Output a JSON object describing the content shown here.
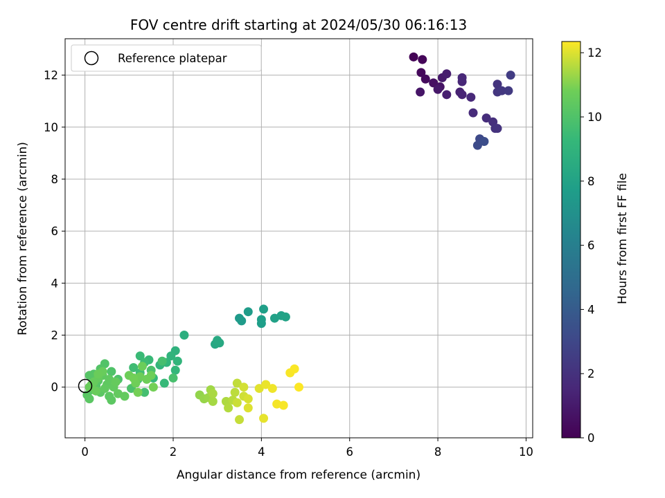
{
  "chart_data": {
    "type": "scatter",
    "title": "FOV centre drift starting at 2024/05/30 06:16:13",
    "xlabel": "Angular distance from reference (arcmin)",
    "ylabel": "Rotation from reference (arcmin)",
    "xlim": [
      -0.45,
      10.15
    ],
    "ylim": [
      -1.95,
      13.4
    ],
    "xticks": [
      0,
      2,
      4,
      6,
      8,
      10
    ],
    "yticks": [
      0,
      2,
      4,
      6,
      8,
      10,
      12
    ],
    "grid": true,
    "legend": {
      "placement": "top-left",
      "entries": [
        "Reference platepar"
      ]
    },
    "reference_point": {
      "x": 0,
      "y": 0,
      "label": "Reference platepar"
    },
    "colorbar": {
      "label": "Hours from first FF file",
      "range": [
        0,
        12.35
      ],
      "ticks": [
        0,
        2,
        4,
        6,
        8,
        10,
        12
      ],
      "colormap": "viridis"
    },
    "points": [
      [
        7.45,
        12.7,
        0.1
      ],
      [
        7.65,
        12.6,
        0.2
      ],
      [
        7.62,
        12.1,
        0.3
      ],
      [
        7.72,
        11.85,
        0.4
      ],
      [
        7.9,
        11.7,
        0.6
      ],
      [
        8.05,
        11.55,
        0.7
      ],
      [
        7.6,
        11.35,
        0.8
      ],
      [
        8.0,
        11.45,
        0.9
      ],
      [
        8.1,
        11.9,
        1.0
      ],
      [
        8.2,
        12.05,
        1.1
      ],
      [
        8.2,
        11.25,
        1.2
      ],
      [
        8.5,
        11.35,
        1.3
      ],
      [
        8.55,
        11.25,
        1.4
      ],
      [
        8.55,
        11.75,
        1.5
      ],
      [
        8.55,
        11.9,
        1.55
      ],
      [
        8.75,
        11.15,
        1.6
      ],
      [
        8.8,
        10.55,
        1.7
      ],
      [
        9.1,
        10.35,
        1.8
      ],
      [
        9.25,
        10.2,
        1.9
      ],
      [
        9.3,
        9.95,
        2.0
      ],
      [
        9.35,
        9.95,
        2.05
      ],
      [
        9.35,
        11.65,
        2.1
      ],
      [
        9.35,
        11.35,
        2.2
      ],
      [
        9.45,
        11.4,
        2.3
      ],
      [
        9.6,
        11.4,
        2.4
      ],
      [
        9.65,
        12.0,
        2.5
      ],
      [
        8.95,
        9.55,
        3.1
      ],
      [
        8.9,
        9.3,
        3.2
      ],
      [
        9.05,
        9.45,
        3.3
      ],
      [
        3.5,
        2.65,
        7.5
      ],
      [
        3.55,
        2.55,
        7.55
      ],
      [
        3.7,
        2.9,
        7.6
      ],
      [
        4.0,
        2.45,
        7.7
      ],
      [
        4.0,
        2.6,
        7.75
      ],
      [
        4.05,
        3.0,
        7.8
      ],
      [
        4.3,
        2.65,
        7.9
      ],
      [
        4.45,
        2.75,
        7.95
      ],
      [
        4.55,
        2.7,
        8.0
      ],
      [
        2.95,
        1.65,
        8.3
      ],
      [
        3.05,
        1.7,
        8.35
      ],
      [
        3.0,
        1.8,
        8.4
      ],
      [
        2.25,
        2.0,
        8.7
      ],
      [
        2.05,
        1.4,
        8.9
      ],
      [
        1.95,
        1.2,
        9.0
      ],
      [
        2.1,
        1.0,
        9.05
      ],
      [
        1.7,
        0.85,
        9.1
      ],
      [
        1.85,
        0.95,
        9.15
      ],
      [
        2.05,
        0.65,
        9.2
      ],
      [
        1.55,
        0.35,
        9.25
      ],
      [
        1.8,
        0.15,
        9.3
      ],
      [
        1.45,
        1.05,
        9.35
      ],
      [
        1.25,
        1.2,
        9.4
      ],
      [
        1.35,
        0.95,
        9.5
      ],
      [
        1.1,
        0.75,
        9.55
      ],
      [
        1.25,
        0.55,
        9.6
      ],
      [
        1.2,
        0.3,
        9.65
      ],
      [
        1.35,
        -0.2,
        9.7
      ],
      [
        1.75,
        1.0,
        9.75
      ],
      [
        2.0,
        0.35,
        9.8
      ],
      [
        1.5,
        0.65,
        9.85
      ],
      [
        1.05,
        -0.05,
        9.9
      ],
      [
        0.75,
        0.3,
        9.95
      ],
      [
        0.6,
        0.6,
        10.0
      ],
      [
        0.45,
        0.9,
        10.05
      ],
      [
        0.35,
        0.7,
        10.1
      ],
      [
        0.2,
        0.5,
        10.12
      ],
      [
        0.1,
        0.45,
        10.15
      ],
      [
        0.3,
        0.25,
        10.18
      ],
      [
        0.25,
        0.05,
        10.2
      ],
      [
        0.15,
        -0.1,
        10.22
      ],
      [
        0.05,
        -0.3,
        10.25
      ],
      [
        0.1,
        -0.45,
        10.28
      ],
      [
        0.35,
        -0.2,
        10.3
      ],
      [
        0.55,
        -0.35,
        10.32
      ],
      [
        0.6,
        -0.5,
        10.35
      ],
      [
        0.4,
        0.45,
        10.38
      ],
      [
        0.5,
        0.1,
        10.4
      ],
      [
        0.55,
        0.3,
        10.42
      ],
      [
        0.45,
        -0.05,
        10.45
      ],
      [
        0.65,
        0.0,
        10.48
      ],
      [
        0.75,
        -0.25,
        10.5
      ],
      [
        0.9,
        -0.35,
        10.52
      ],
      [
        0.7,
        0.2,
        10.55
      ],
      [
        0.3,
        0.35,
        10.57
      ],
      [
        0.2,
        0.2,
        10.6
      ],
      [
        0.15,
        0.1,
        10.62
      ],
      [
        0.4,
        0.6,
        10.64
      ],
      [
        0.25,
        -0.15,
        10.66
      ],
      [
        0.1,
        0.0,
        10.68
      ],
      [
        0.3,
        0.5,
        10.7
      ],
      [
        1.3,
        0.8,
        10.72
      ],
      [
        1.0,
        0.45,
        10.74
      ],
      [
        1.25,
        0.4,
        10.76
      ],
      [
        1.5,
        0.45,
        10.78
      ],
      [
        1.4,
        0.3,
        10.8
      ],
      [
        1.15,
        0.15,
        10.82
      ],
      [
        1.1,
        0.35,
        10.84
      ],
      [
        1.55,
        0.0,
        10.86
      ],
      [
        1.2,
        -0.2,
        10.88
      ],
      [
        2.6,
        -0.3,
        11.2
      ],
      [
        2.7,
        -0.45,
        11.25
      ],
      [
        2.8,
        -0.4,
        11.3
      ],
      [
        2.85,
        -0.1,
        11.35
      ],
      [
        2.9,
        -0.55,
        11.4
      ],
      [
        2.9,
        -0.25,
        11.45
      ],
      [
        3.2,
        -0.55,
        11.5
      ],
      [
        3.25,
        -0.8,
        11.55
      ],
      [
        3.35,
        -0.5,
        11.6
      ],
      [
        3.4,
        -0.2,
        11.65
      ],
      [
        3.45,
        0.15,
        11.7
      ],
      [
        3.5,
        -1.25,
        11.75
      ],
      [
        3.45,
        -0.6,
        11.8
      ],
      [
        3.6,
        -0.35,
        11.85
      ],
      [
        3.6,
        0.0,
        11.9
      ],
      [
        3.7,
        -0.45,
        11.95
      ],
      [
        3.7,
        -0.8,
        12.0
      ],
      [
        3.95,
        -0.05,
        12.05
      ],
      [
        4.05,
        -1.2,
        12.1
      ],
      [
        4.1,
        0.1,
        12.15
      ],
      [
        4.25,
        -0.05,
        12.2
      ],
      [
        4.35,
        -0.65,
        12.25
      ],
      [
        4.5,
        -0.7,
        12.28
      ],
      [
        4.65,
        0.55,
        12.3
      ],
      [
        4.75,
        0.7,
        12.32
      ],
      [
        4.85,
        0.0,
        12.34
      ]
    ]
  }
}
